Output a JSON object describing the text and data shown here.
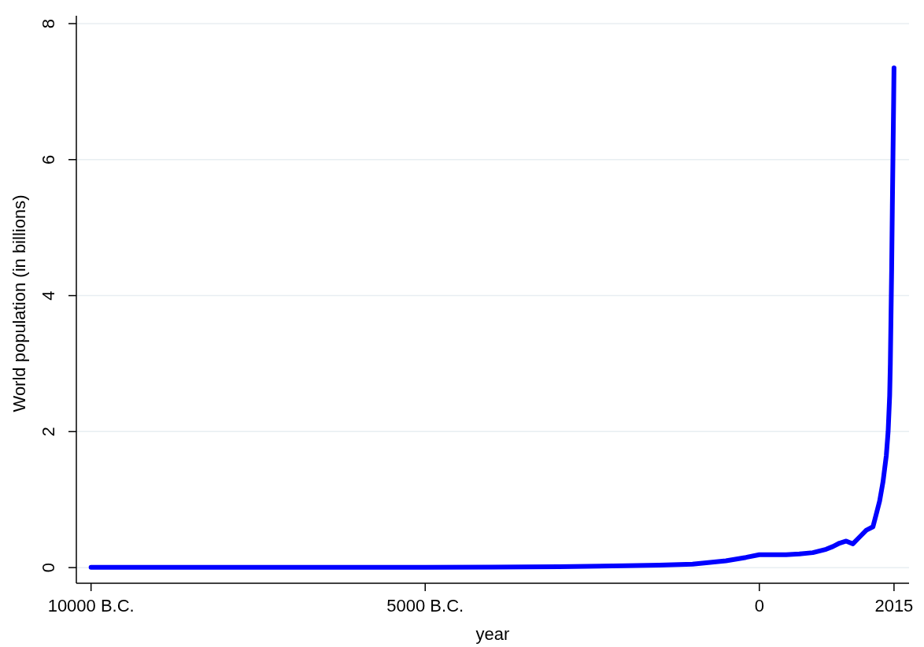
{
  "chart_data": {
    "type": "line",
    "xlabel": "year",
    "ylabel": "World population (in billions)",
    "xlim": [
      -10220,
      2240
    ],
    "ylim": [
      -0.23,
      8
    ],
    "xticks": [
      {
        "value": -10000,
        "label": "10000 B.C."
      },
      {
        "value": -5000,
        "label": "5000 B.C."
      },
      0,
      2015
    ],
    "yticks": [
      0,
      2,
      4,
      6,
      8
    ],
    "grid": "y",
    "marker": "none",
    "line_style": "solid",
    "series": [
      {
        "color": "#0000ff",
        "x": [
          -10000,
          -8000,
          -6000,
          -5000,
          -4000,
          -3000,
          -2000,
          -1500,
          -1000,
          -500,
          -200,
          0,
          200,
          400,
          600,
          800,
          1000,
          1100,
          1200,
          1300,
          1350,
          1400,
          1500,
          1600,
          1700,
          1750,
          1800,
          1850,
          1900,
          1927,
          1950,
          1960,
          1970,
          1980,
          1990,
          2000,
          2010,
          2015
        ],
        "values": [
          0.004,
          0.005,
          0.005,
          0.005,
          0.007,
          0.014,
          0.027,
          0.035,
          0.05,
          0.1,
          0.15,
          0.19,
          0.19,
          0.19,
          0.2,
          0.22,
          0.27,
          0.31,
          0.36,
          0.39,
          0.37,
          0.35,
          0.45,
          0.55,
          0.6,
          0.79,
          0.98,
          1.26,
          1.65,
          2.0,
          2.53,
          3.0,
          3.7,
          4.4,
          5.3,
          6.1,
          6.9,
          7.35
        ]
      }
    ]
  }
}
